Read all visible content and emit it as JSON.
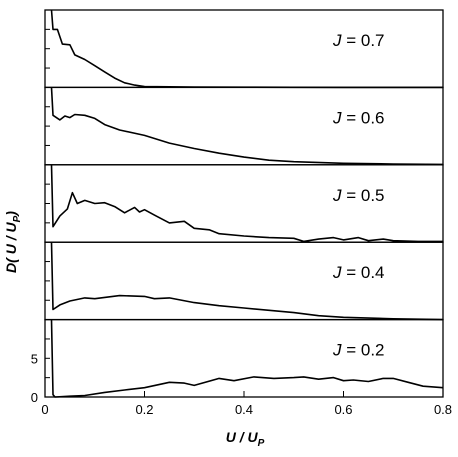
{
  "chart_data": {
    "type": "line",
    "xlabel": "U / U",
    "xlabel_subscript": "P",
    "ylabel": "D( U / U",
    "ylabel_subscript": "P",
    "ylabel_close": ")",
    "xlim": [
      0,
      0.8
    ],
    "x_ticks": [
      {
        "value": 0,
        "label": "0"
      },
      {
        "value": 0.2,
        "label": "0.2"
      },
      {
        "value": 0.4,
        "label": "0.4"
      },
      {
        "value": 0.6,
        "label": "0.6"
      },
      {
        "value": 0.8,
        "label": "0.8"
      }
    ],
    "y_ticks": [
      {
        "value": 0,
        "label": "0"
      },
      {
        "value": 5,
        "label": "5"
      }
    ],
    "grid": false,
    "panels": [
      {
        "label_var": "J",
        "label_value": " = 0.7",
        "ylim": [
          0,
          10
        ],
        "points": [
          [
            0.013,
            10.2
          ],
          [
            0.016,
            7.5
          ],
          [
            0.025,
            7.5
          ],
          [
            0.035,
            5.6
          ],
          [
            0.05,
            5.5
          ],
          [
            0.06,
            4.2
          ],
          [
            0.08,
            3.6
          ],
          [
            0.1,
            2.8
          ],
          [
            0.12,
            2.0
          ],
          [
            0.14,
            1.2
          ],
          [
            0.16,
            0.6
          ],
          [
            0.18,
            0.3
          ],
          [
            0.2,
            0.1
          ],
          [
            0.25,
            0.08
          ],
          [
            0.3,
            0.05
          ],
          [
            0.4,
            0.02
          ],
          [
            0.5,
            0.01
          ],
          [
            0.6,
            0.0
          ],
          [
            0.7,
            0.0
          ],
          [
            0.8,
            0.0
          ]
        ]
      },
      {
        "label_var": "J",
        "label_value": " = 0.6",
        "ylim": [
          0,
          10
        ],
        "points": [
          [
            0.013,
            10.2
          ],
          [
            0.016,
            6.4
          ],
          [
            0.03,
            5.8
          ],
          [
            0.04,
            6.3
          ],
          [
            0.05,
            6.1
          ],
          [
            0.06,
            6.5
          ],
          [
            0.08,
            6.4
          ],
          [
            0.1,
            6.0
          ],
          [
            0.12,
            5.2
          ],
          [
            0.15,
            4.5
          ],
          [
            0.2,
            3.8
          ],
          [
            0.25,
            2.8
          ],
          [
            0.3,
            2.1
          ],
          [
            0.35,
            1.5
          ],
          [
            0.4,
            1.0
          ],
          [
            0.45,
            0.6
          ],
          [
            0.5,
            0.4
          ],
          [
            0.6,
            0.2
          ],
          [
            0.7,
            0.1
          ],
          [
            0.8,
            0.05
          ]
        ]
      },
      {
        "label_var": "J",
        "label_value": " = 0.5",
        "ylim": [
          0,
          10
        ],
        "points": [
          [
            0.013,
            10.2
          ],
          [
            0.016,
            2.0
          ],
          [
            0.03,
            3.4
          ],
          [
            0.045,
            4.3
          ],
          [
            0.055,
            6.4
          ],
          [
            0.065,
            5.0
          ],
          [
            0.08,
            5.4
          ],
          [
            0.1,
            5.0
          ],
          [
            0.12,
            5.1
          ],
          [
            0.14,
            4.6
          ],
          [
            0.16,
            3.8
          ],
          [
            0.18,
            4.5
          ],
          [
            0.19,
            3.9
          ],
          [
            0.2,
            4.2
          ],
          [
            0.22,
            3.5
          ],
          [
            0.25,
            2.5
          ],
          [
            0.28,
            2.7
          ],
          [
            0.3,
            1.8
          ],
          [
            0.33,
            1.6
          ],
          [
            0.35,
            1.1
          ],
          [
            0.4,
            0.8
          ],
          [
            0.45,
            0.6
          ],
          [
            0.5,
            0.5
          ],
          [
            0.52,
            0.1
          ],
          [
            0.55,
            0.4
          ],
          [
            0.58,
            0.6
          ],
          [
            0.6,
            0.3
          ],
          [
            0.63,
            0.6
          ],
          [
            0.65,
            0.2
          ],
          [
            0.68,
            0.4
          ],
          [
            0.7,
            0.2
          ],
          [
            0.75,
            0.1
          ],
          [
            0.8,
            0.1
          ]
        ]
      },
      {
        "label_var": "J",
        "label_value": " = 0.4",
        "ylim": [
          0,
          10
        ],
        "points": [
          [
            0.013,
            10.2
          ],
          [
            0.016,
            1.3
          ],
          [
            0.03,
            1.9
          ],
          [
            0.05,
            2.4
          ],
          [
            0.08,
            2.8
          ],
          [
            0.1,
            2.7
          ],
          [
            0.15,
            3.1
          ],
          [
            0.2,
            3.0
          ],
          [
            0.22,
            2.7
          ],
          [
            0.25,
            2.8
          ],
          [
            0.3,
            2.2
          ],
          [
            0.35,
            1.8
          ],
          [
            0.4,
            1.5
          ],
          [
            0.5,
            0.9
          ],
          [
            0.55,
            0.5
          ],
          [
            0.6,
            0.3
          ],
          [
            0.7,
            0.1
          ],
          [
            0.8,
            0.0
          ]
        ]
      },
      {
        "label_var": "J",
        "label_value": " = 0.2",
        "ylim": [
          0,
          10
        ],
        "points": [
          [
            0.013,
            10.2
          ],
          [
            0.016,
            0.3
          ],
          [
            0.02,
            0.0
          ],
          [
            0.05,
            0.1
          ],
          [
            0.08,
            0.2
          ],
          [
            0.12,
            0.6
          ],
          [
            0.16,
            0.9
          ],
          [
            0.2,
            1.2
          ],
          [
            0.25,
            1.9
          ],
          [
            0.28,
            1.8
          ],
          [
            0.3,
            1.5
          ],
          [
            0.35,
            2.4
          ],
          [
            0.38,
            2.1
          ],
          [
            0.42,
            2.6
          ],
          [
            0.46,
            2.4
          ],
          [
            0.5,
            2.5
          ],
          [
            0.52,
            2.6
          ],
          [
            0.55,
            2.3
          ],
          [
            0.58,
            2.5
          ],
          [
            0.6,
            2.1
          ],
          [
            0.62,
            2.2
          ],
          [
            0.65,
            2.0
          ],
          [
            0.68,
            2.4
          ],
          [
            0.7,
            2.4
          ],
          [
            0.73,
            1.9
          ],
          [
            0.76,
            1.4
          ],
          [
            0.8,
            1.2
          ]
        ]
      }
    ]
  }
}
